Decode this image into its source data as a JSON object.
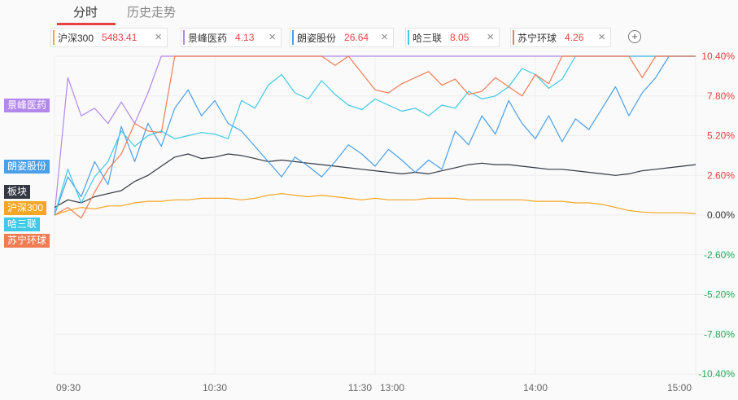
{
  "tabs": [
    {
      "label": "分时"
    },
    {
      "label": "历史走势"
    }
  ],
  "chips": [
    {
      "name": "沪深300",
      "value": "5483.41",
      "color": "#f5a623"
    },
    {
      "name": "景峰医药",
      "value": "4.13",
      "color": "#b388eb"
    },
    {
      "name": "朗姿股份",
      "value": "26.64",
      "color": "#4a9fe8"
    },
    {
      "name": "哈三联",
      "value": "8.05",
      "color": "#40c8e6"
    },
    {
      "name": "苏宁环球",
      "value": "4.26",
      "color": "#f07c54"
    }
  ],
  "add_button": "+",
  "close_glyph": "×",
  "left_tags": [
    {
      "label": "景峰医药",
      "color": "#b388eb"
    },
    {
      "label": "朗姿股份",
      "color": "#4a9fe8"
    },
    {
      "label": "板块",
      "color": "#333842"
    },
    {
      "label": "沪深300",
      "color": "#f5a623"
    },
    {
      "label": "哈三联",
      "color": "#40c8e6"
    },
    {
      "label": "苏宁环球",
      "color": "#f07c54"
    }
  ],
  "chart_data": {
    "type": "line",
    "x_ticks": [
      "09:30",
      "10:30",
      "11:30",
      "13:00",
      "14:00",
      "15:00"
    ],
    "y_ticks": [
      "10.40%",
      "7.80%",
      "5.20%",
      "2.60%",
      "0.00%",
      "-2.60%",
      "-5.20%",
      "-7.80%",
      "-10.40%"
    ],
    "y_tick_values": [
      10.4,
      7.8,
      5.2,
      2.6,
      0,
      -2.6,
      -5.2,
      -7.8,
      -10.4
    ],
    "ylim": [
      -10.4,
      10.4
    ],
    "colors": {
      "up": "#e64340",
      "down": "#21ac59",
      "zero": "#333333"
    },
    "series": [
      {
        "name": "沪深300",
        "color": "#f5a623",
        "values": [
          0.0,
          0.3,
          0.5,
          0.4,
          0.6,
          0.6,
          0.8,
          0.9,
          0.9,
          1.0,
          1.0,
          1.1,
          1.1,
          1.1,
          1.0,
          1.1,
          1.3,
          1.4,
          1.3,
          1.2,
          1.3,
          1.2,
          1.1,
          1.0,
          1.1,
          1.0,
          1.0,
          1.0,
          1.1,
          1.1,
          1.1,
          1.0,
          1.0,
          1.0,
          1.0,
          1.0,
          0.9,
          0.9,
          0.9,
          0.8,
          0.8,
          0.7,
          0.5,
          0.3,
          0.2,
          0.15,
          0.15,
          0.15,
          0.1
        ]
      },
      {
        "name": "景峰医药",
        "color": "#b388eb",
        "values": [
          0.0,
          9.0,
          6.5,
          7.0,
          6.0,
          7.4,
          6.0,
          8.0,
          10.4,
          10.4,
          10.4,
          10.4,
          10.4,
          10.4,
          10.4,
          10.4,
          10.4,
          10.4,
          10.4,
          10.4,
          10.4,
          10.4,
          10.4,
          10.4,
          10.4,
          10.4,
          10.4,
          10.4,
          10.4,
          10.4,
          10.4,
          10.4,
          10.4,
          10.4,
          10.4,
          10.4,
          10.4,
          10.4,
          10.4,
          10.4,
          10.4,
          10.4,
          10.4,
          10.4,
          10.4,
          10.4,
          10.4,
          10.4,
          10.4
        ]
      },
      {
        "name": "板块",
        "color": "#333842",
        "values": [
          0.5,
          1.0,
          0.8,
          1.2,
          1.4,
          1.6,
          2.2,
          2.6,
          3.2,
          3.8,
          4.0,
          3.7,
          3.8,
          4.0,
          3.9,
          3.7,
          3.5,
          3.6,
          3.5,
          3.4,
          3.3,
          3.2,
          3.1,
          3.0,
          2.9,
          2.8,
          2.7,
          2.8,
          2.7,
          2.9,
          3.1,
          3.3,
          3.4,
          3.3,
          3.3,
          3.2,
          3.1,
          3.0,
          3.0,
          2.9,
          2.8,
          2.7,
          2.6,
          2.7,
          2.9,
          3.0,
          3.1,
          3.2,
          3.3
        ]
      },
      {
        "name": "朗姿股份",
        "color": "#4a9fe8",
        "values": [
          0.0,
          2.5,
          1.2,
          3.5,
          2.0,
          5.8,
          3.5,
          6.0,
          4.5,
          7.0,
          8.2,
          6.5,
          7.5,
          6.0,
          5.5,
          4.5,
          3.5,
          2.5,
          3.8,
          3.2,
          2.5,
          3.5,
          4.6,
          4.0,
          3.2,
          4.3,
          3.6,
          2.8,
          3.6,
          3.0,
          5.5,
          4.6,
          6.5,
          5.3,
          7.5,
          6.0,
          5.0,
          6.5,
          4.8,
          6.3,
          5.6,
          7.0,
          8.4,
          6.5,
          8.0,
          9.0,
          10.4,
          10.4,
          10.4
        ]
      },
      {
        "name": "哈三联",
        "color": "#40c8e6",
        "values": [
          0.0,
          3.0,
          0.8,
          2.5,
          3.5,
          5.5,
          4.5,
          5.2,
          5.5,
          5.0,
          5.2,
          5.4,
          5.3,
          5.0,
          7.5,
          7.0,
          8.5,
          9.2,
          8.0,
          7.6,
          8.8,
          7.9,
          7.2,
          6.9,
          7.6,
          7.2,
          6.8,
          7.0,
          6.5,
          7.2,
          7.0,
          8.1,
          7.6,
          7.8,
          8.4,
          9.6,
          9.2,
          8.3,
          8.9,
          10.4,
          10.4,
          10.4,
          10.4,
          10.4,
          10.4,
          10.4,
          10.4,
          10.4,
          10.4
        ]
      },
      {
        "name": "苏宁环球",
        "color": "#f07c54",
        "values": [
          0.0,
          0.5,
          -0.2,
          1.5,
          3.0,
          4.0,
          6.0,
          5.5,
          5.4,
          10.4,
          10.4,
          10.4,
          10.4,
          10.4,
          10.4,
          10.4,
          10.4,
          10.4,
          10.4,
          10.4,
          10.4,
          9.8,
          10.4,
          9.3,
          8.2,
          8.0,
          8.6,
          9.0,
          9.4,
          8.5,
          8.9,
          7.9,
          8.1,
          9.0,
          8.4,
          7.8,
          9.2,
          8.6,
          10.4,
          10.4,
          10.4,
          10.4,
          10.4,
          10.4,
          9.0,
          10.4,
          10.4,
          10.4,
          10.4
        ]
      }
    ]
  }
}
